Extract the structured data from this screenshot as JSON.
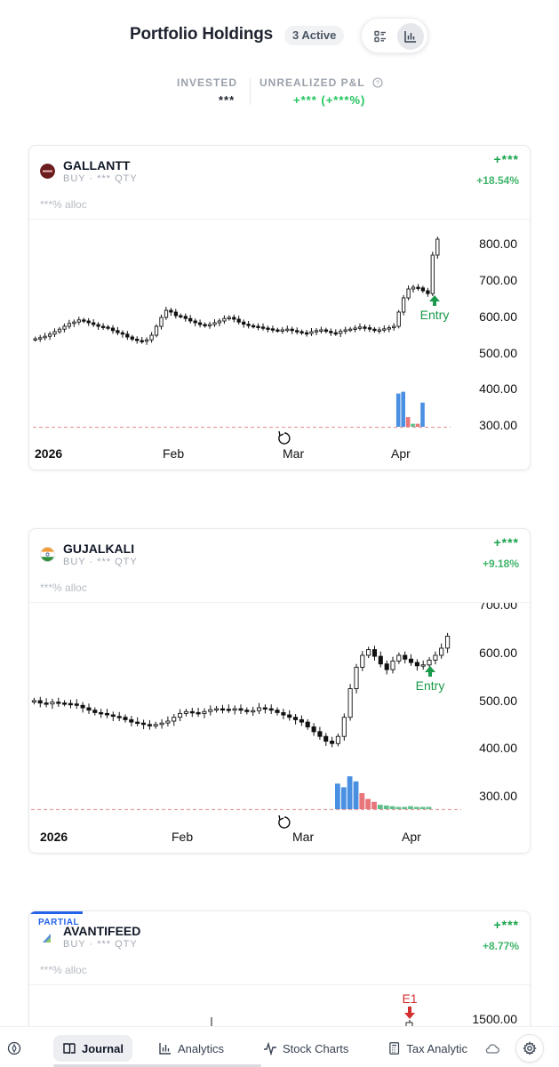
{
  "header": {
    "title": "Portfolio Holdings",
    "badge": "3 Active",
    "view_toggle": [
      "list-view-icon",
      "chart-view-icon"
    ]
  },
  "summary": {
    "invested_label": "INVESTED",
    "invested_value": "***",
    "pnl_label": "UNREALIZED P&L",
    "pnl_value": "+*** (+***%)"
  },
  "colors": {
    "profit": "#16a34a",
    "profit_light": "#3fb56b",
    "volume_up": "#4a90e2",
    "volume_down": "#e8757a",
    "volume_flat": "#5fbf8a",
    "entry_marker": "#1a9a4a",
    "exit_marker": "#d32f2f",
    "accent": "#2563eb"
  },
  "holdings": [
    {
      "symbol": "GALLANTT",
      "side_qty": "BUY · *** QTY",
      "alloc": "***% alloc",
      "pnl": "+***",
      "pnl_pct": "+18.54%",
      "logo": "gallantt-logo",
      "chart_data": {
        "type": "candlestick",
        "x_ticks": [
          "2026",
          "Feb",
          "Mar",
          "Apr"
        ],
        "y_ticks": [
          "800.00",
          "700.00",
          "600.00",
          "500.00",
          "400.00",
          "300.00"
        ],
        "ylim": [
          270,
          830
        ],
        "marker": "Entry",
        "closes": [
          525,
          528,
          532,
          538,
          545,
          552,
          560,
          568,
          572,
          578,
          575,
          570,
          565,
          560,
          558,
          555,
          548,
          542,
          538,
          530,
          524,
          520,
          518,
          522,
          535,
          560,
          585,
          605,
          600,
          590,
          588,
          582,
          575,
          570,
          565,
          562,
          565,
          570,
          575,
          582,
          585,
          580,
          572,
          566,
          562,
          560,
          558,
          555,
          553,
          550,
          548,
          550,
          552,
          548,
          545,
          542,
          540,
          545,
          548,
          550,
          546,
          542,
          540,
          546,
          550,
          552,
          555,
          558,
          556,
          552,
          548,
          550,
          553,
          556,
          560,
          600,
          640,
          665,
          670,
          668,
          660,
          652,
          760,
          805
        ],
        "volume_series": [
          {
            "i": 75,
            "v": 55,
            "c": "up"
          },
          {
            "i": 76,
            "v": 58,
            "c": "up"
          },
          {
            "i": 77,
            "v": 16,
            "c": "down"
          },
          {
            "i": 78,
            "v": 5,
            "c": "flat"
          },
          {
            "i": 79,
            "v": 5,
            "c": "down"
          },
          {
            "i": 80,
            "v": 40,
            "c": "up"
          }
        ]
      }
    },
    {
      "symbol": "GUJALKALI",
      "side_qty": "BUY · *** QTY",
      "alloc": "***% alloc",
      "pnl": "+***",
      "pnl_pct": "+9.18%",
      "logo": "india-flag-logo",
      "chart_data": {
        "type": "candlestick",
        "x_ticks": [
          "2026",
          "Feb",
          "Mar",
          "Apr"
        ],
        "y_ticks": [
          "700.00",
          "600.00",
          "500.00",
          "400.00",
          "300.00"
        ],
        "ylim": [
          270,
          710
        ],
        "marker": "Entry",
        "closes": [
          505,
          500,
          498,
          502,
          500,
          499,
          498,
          495,
          490,
          485,
          480,
          478,
          475,
          472,
          470,
          465,
          460,
          458,
          455,
          452,
          455,
          458,
          462,
          470,
          478,
          482,
          480,
          478,
          482,
          486,
          488,
          487,
          486,
          488,
          485,
          482,
          484,
          490,
          488,
          485,
          480,
          475,
          470,
          465,
          460,
          450,
          440,
          430,
          420,
          415,
          430,
          470,
          530,
          575,
          600,
          612,
          598,
          582,
          570,
          588,
          600,
          592,
          585,
          578,
          580,
          590,
          600,
          615,
          640
        ],
        "volume_series": [
          {
            "i": 50,
            "v": 35,
            "c": "up"
          },
          {
            "i": 51,
            "v": 30,
            "c": "up"
          },
          {
            "i": 52,
            "v": 45,
            "c": "up"
          },
          {
            "i": 53,
            "v": 38,
            "c": "up"
          },
          {
            "i": 54,
            "v": 22,
            "c": "down"
          },
          {
            "i": 55,
            "v": 14,
            "c": "down"
          },
          {
            "i": 56,
            "v": 10,
            "c": "down"
          },
          {
            "i": 57,
            "v": 6,
            "c": "flat"
          },
          {
            "i": 58,
            "v": 5,
            "c": "flat"
          },
          {
            "i": 59,
            "v": 4,
            "c": "flat"
          },
          {
            "i": 60,
            "v": 3,
            "c": "flat"
          },
          {
            "i": 61,
            "v": 3,
            "c": "flat"
          },
          {
            "i": 62,
            "v": 4,
            "c": "flat"
          },
          {
            "i": 63,
            "v": 3,
            "c": "flat"
          },
          {
            "i": 64,
            "v": 3,
            "c": "flat"
          },
          {
            "i": 65,
            "v": 3,
            "c": "flat"
          }
        ]
      }
    },
    {
      "symbol": "AVANTIFEED",
      "tag": "PARTIAL",
      "side_qty": "BUY · *** QTY",
      "alloc": "***% alloc",
      "pnl": "+***",
      "pnl_pct": "+8.77%",
      "logo": "avantifeed-logo",
      "chart_data": {
        "type": "candlestick",
        "y_ticks": [
          "1500.00"
        ],
        "marker": "E1"
      }
    }
  ],
  "nav": {
    "items": [
      {
        "label": "Journal",
        "icon": "journal-icon"
      },
      {
        "label": "Analytics",
        "icon": "analytics-icon"
      },
      {
        "label": "Stock Charts",
        "icon": "stock-charts-icon"
      },
      {
        "label": "Tax Analytic",
        "icon": "tax-icon"
      }
    ]
  }
}
